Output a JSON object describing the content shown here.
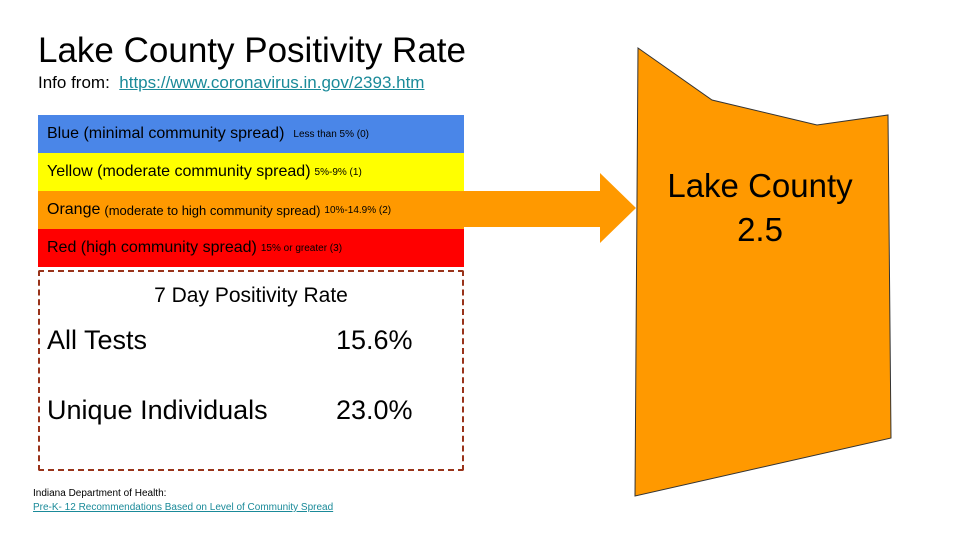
{
  "header": {
    "title": "Lake County Positivity Rate",
    "info_prefix": "Info from:",
    "info_link": "https://www.coronavirus.in.gov/2393.htm"
  },
  "legend": [
    {
      "main": "Blue (minimal community spread)",
      "range": "Less than 5% (0)",
      "color": "#4a86e8"
    },
    {
      "main": "Yellow (moderate community spread)",
      "range": "5%-9% (1)",
      "color": "#ffff00"
    },
    {
      "main": "Orange",
      "detail": "(moderate to high community spread)",
      "range": "10%-14.9% (2)",
      "color": "#ff9900"
    },
    {
      "main": "Red (high community spread)",
      "range": "15% or greater (3)",
      "color": "#ff0000"
    }
  ],
  "positivity": {
    "title": "7 Day Positivity Rate",
    "rows": [
      {
        "label": "All Tests",
        "value": "15.6%"
      },
      {
        "label": "Unique Individuals",
        "value": "23.0%"
      }
    ]
  },
  "footer": {
    "source": "Indiana Department of Health:",
    "link": "Pre-K- 12 Recommendations Based on Level of Community Spread"
  },
  "county": {
    "name": "Lake County",
    "value": "2.5",
    "color": "#ff9900"
  }
}
